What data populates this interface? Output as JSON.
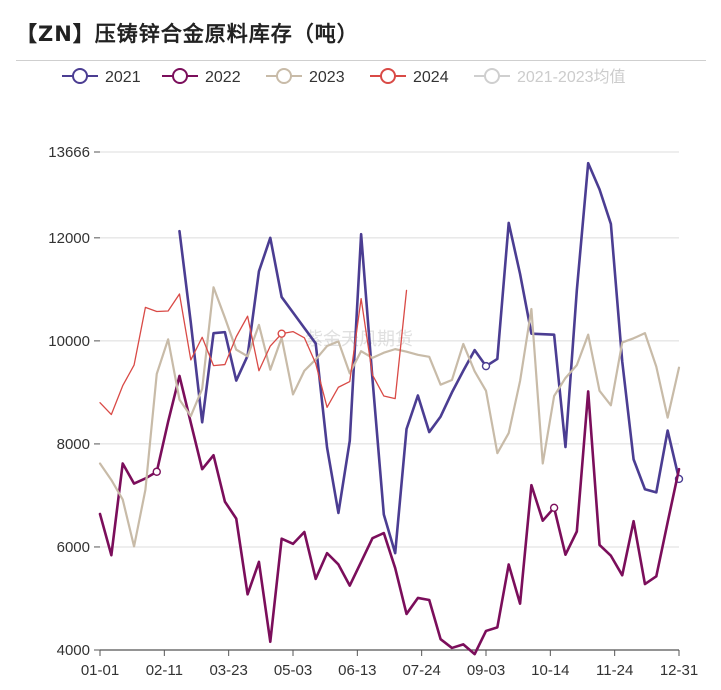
{
  "title": "【ZN】压铸锌合金原料库存（吨）",
  "watermark": "紫金天风期货",
  "chart_data": {
    "type": "line",
    "title": "【ZN】压铸锌合金原料库存（吨）",
    "xlabel": "",
    "ylabel": "",
    "ylim": [
      4000,
      13666
    ],
    "yticks": [
      4000,
      6000,
      8000,
      10000,
      12000,
      13666
    ],
    "xticks": [
      "01-01",
      "02-11",
      "03-23",
      "05-03",
      "06-13",
      "07-24",
      "09-03",
      "10-14",
      "11-24",
      "12-31"
    ],
    "grid": true,
    "legend_position": "top",
    "series": [
      {
        "name": "2021",
        "color": "#4b3d92",
        "values": [
          null,
          null,
          null,
          null,
          null,
          null,
          null,
          12130,
          10350,
          8420,
          10150,
          10170,
          9230,
          9710,
          11350,
          12000,
          10850,
          10550,
          10250,
          9950,
          7930,
          6660,
          8060,
          12070,
          9260,
          6630,
          5880,
          8290,
          8940,
          8230,
          8530,
          9000,
          9420,
          9820,
          9510,
          9650,
          12290,
          11300,
          10140,
          10130,
          10120,
          7940,
          10980,
          13450,
          12940,
          12270,
          9600,
          7700,
          7120,
          7060,
          8260,
          7320
        ],
        "markers": [
          {
            "index": 34,
            "value": 9510
          },
          {
            "index": 51,
            "value": 7320
          }
        ]
      },
      {
        "name": "2022",
        "color": "#7b0e5b",
        "values": [
          6640,
          5840,
          7620,
          7230,
          7330,
          7460,
          8430,
          9320,
          8410,
          7510,
          7780,
          6880,
          6550,
          5080,
          5710,
          4160,
          6160,
          6060,
          6290,
          5380,
          5880,
          5660,
          5250,
          5710,
          6170,
          6270,
          5590,
          4700,
          5010,
          4970,
          4210,
          4040,
          4110,
          3920,
          4370,
          4440,
          5660,
          4900,
          7200,
          6510,
          6760,
          5850,
          6300,
          9020,
          6040,
          5830,
          5450,
          6500,
          5280,
          5430,
          6480,
          7510
        ],
        "markers": [
          {
            "index": 5,
            "value": 7460
          },
          {
            "index": 40,
            "value": 6760
          }
        ]
      },
      {
        "name": "2023",
        "color": "#c8bba8",
        "values": [
          7620,
          7300,
          6920,
          6010,
          7110,
          9360,
          10030,
          8860,
          8540,
          9070,
          11040,
          10450,
          9830,
          9700,
          10310,
          9440,
          10060,
          8960,
          9420,
          9640,
          9900,
          9990,
          9370,
          9800,
          9670,
          9770,
          9840,
          9790,
          9730,
          9690,
          9150,
          9240,
          9940,
          9410,
          9030,
          7820,
          8210,
          9220,
          10620,
          7620,
          8930,
          9280,
          9530,
          10120,
          9030,
          8750,
          9970,
          10050,
          10150,
          9500,
          8510,
          9480
        ],
        "markers": []
      },
      {
        "name": "2024",
        "color": "#d94a46",
        "values": [
          8800,
          8570,
          9130,
          9530,
          10650,
          10570,
          10580,
          10910,
          9630,
          10070,
          9520,
          9540,
          10080,
          10480,
          9420,
          9900,
          10140,
          10180,
          10060,
          9560,
          8710,
          9100,
          9210,
          10820,
          9340,
          8930,
          8880,
          10980
        ],
        "markers": [
          {
            "index": 16,
            "value": 10140
          }
        ]
      },
      {
        "name": "2021-2023均值",
        "color": "#cfcfcf",
        "values": [],
        "markers": [],
        "inactive": true
      }
    ]
  }
}
